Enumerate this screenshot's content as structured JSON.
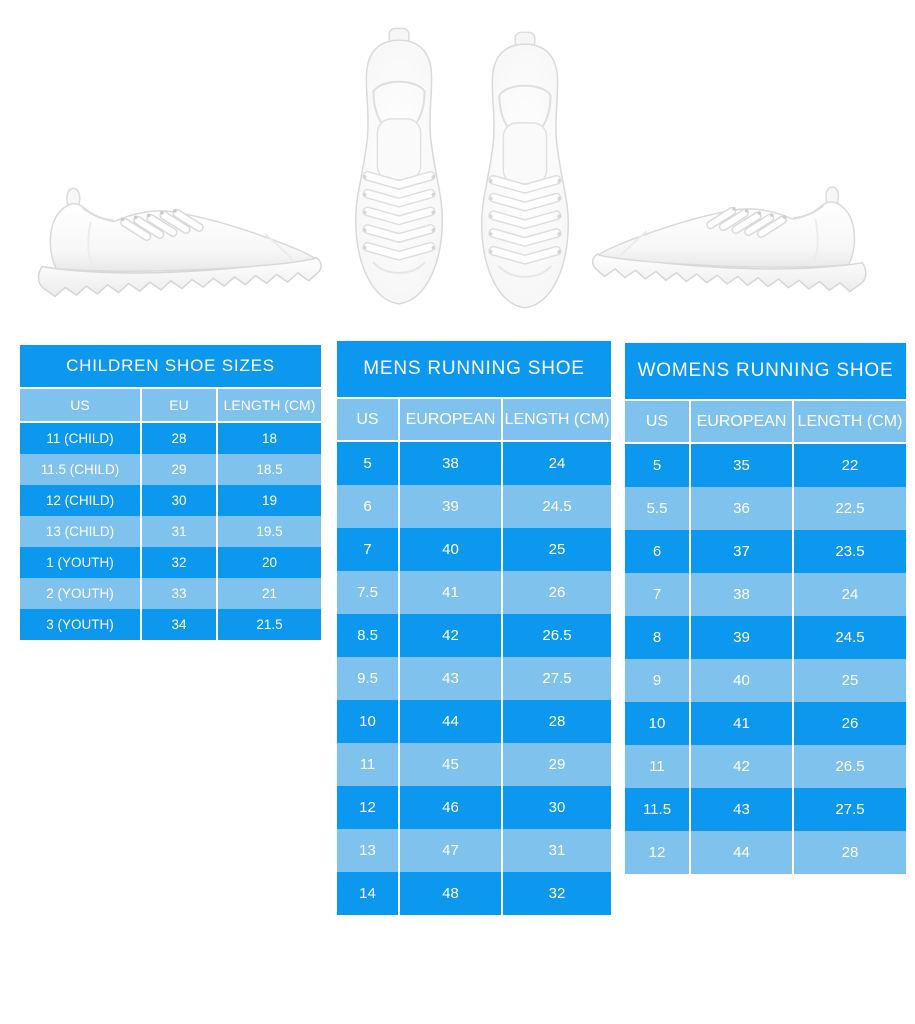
{
  "colors": {
    "primary_blue": "#0d98f0",
    "light_blue": "#80c2ee",
    "text": "#ffffff",
    "page_background": "#ffffff"
  },
  "images": {
    "left": "white-sneaker-side-view-toe-right",
    "center": "white-sneaker-pair-top-view",
    "right": "white-sneaker-side-view-toe-left"
  },
  "chart_data": [
    {
      "type": "table",
      "title": "CHILDREN SHOE SIZES",
      "columns": [
        "US",
        "EU",
        "LENGTH (CM)"
      ],
      "rows": [
        [
          "11 (CHILD)",
          "28",
          "18"
        ],
        [
          "11.5 (CHILD)",
          "29",
          "18.5"
        ],
        [
          "12 (CHILD)",
          "30",
          "19"
        ],
        [
          "13 (CHILD)",
          "31",
          "19.5"
        ],
        [
          "1 (YOUTH)",
          "32",
          "20"
        ],
        [
          "2 (YOUTH)",
          "33",
          "21"
        ],
        [
          "3 (YOUTH)",
          "34",
          "21.5"
        ]
      ]
    },
    {
      "type": "table",
      "title": "MENS RUNNING SHOE",
      "columns": [
        "US",
        "EUROPEAN",
        "LENGTH (CM)"
      ],
      "rows": [
        [
          "5",
          "38",
          "24"
        ],
        [
          "6",
          "39",
          "24.5"
        ],
        [
          "7",
          "40",
          "25"
        ],
        [
          "7.5",
          "41",
          "26"
        ],
        [
          "8.5",
          "42",
          "26.5"
        ],
        [
          "9.5",
          "43",
          "27.5"
        ],
        [
          "10",
          "44",
          "28"
        ],
        [
          "11",
          "45",
          "29"
        ],
        [
          "12",
          "46",
          "30"
        ],
        [
          "13",
          "47",
          "31"
        ],
        [
          "14",
          "48",
          "32"
        ]
      ]
    },
    {
      "type": "table",
      "title": "WOMENS RUNNING SHOE",
      "columns": [
        "US",
        "EUROPEAN",
        "LENGTH (CM)"
      ],
      "rows": [
        [
          "5",
          "35",
          "22"
        ],
        [
          "5.5",
          "36",
          "22.5"
        ],
        [
          "6",
          "37",
          "23.5"
        ],
        [
          "7",
          "38",
          "24"
        ],
        [
          "8",
          "39",
          "24.5"
        ],
        [
          "9",
          "40",
          "25"
        ],
        [
          "10",
          "41",
          "26"
        ],
        [
          "11",
          "42",
          "26.5"
        ],
        [
          "11.5",
          "43",
          "27.5"
        ],
        [
          "12",
          "44",
          "28"
        ]
      ]
    }
  ]
}
